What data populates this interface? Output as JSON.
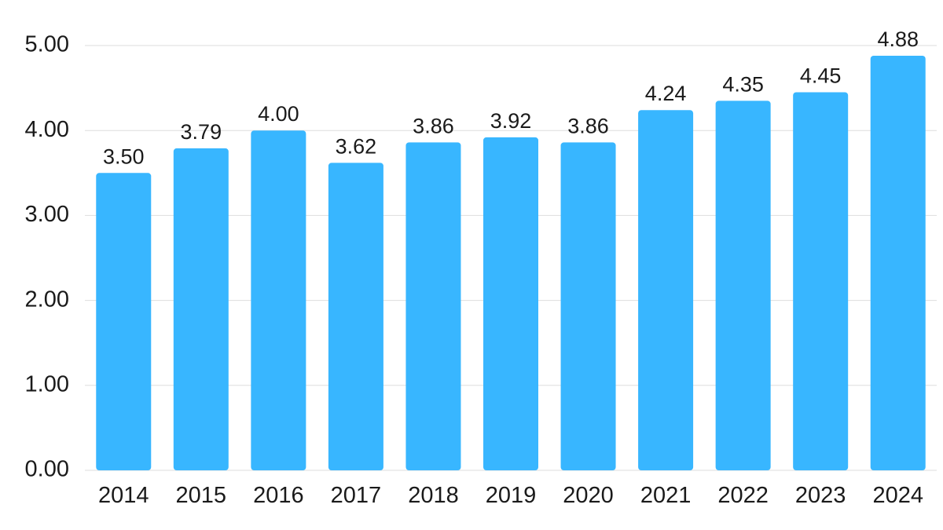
{
  "chart_data": {
    "type": "bar",
    "title": "",
    "xlabel": "",
    "ylabel": "",
    "categories": [
      "2014",
      "2015",
      "2016",
      "2017",
      "2018",
      "2019",
      "2020",
      "2021",
      "2022",
      "2023",
      "2024"
    ],
    "values": [
      3.5,
      3.79,
      4.0,
      3.62,
      3.86,
      3.92,
      3.86,
      4.24,
      4.35,
      4.45,
      4.88
    ],
    "data_labels": [
      "3.50",
      "3.79",
      "4.00",
      "3.62",
      "3.86",
      "3.92",
      "3.86",
      "4.24",
      "4.35",
      "4.45",
      "4.88"
    ],
    "yticks": [
      0,
      1,
      2,
      3,
      4,
      5
    ],
    "ytick_labels": [
      "0.00",
      "1.00",
      "2.00",
      "3.00",
      "4.00",
      "5.00"
    ],
    "ylim": [
      0,
      5
    ],
    "grid": true,
    "legend": "none",
    "colors": {
      "bar": "#38B6FF",
      "grid": "#dedede",
      "text": "#1a1a1a"
    }
  }
}
